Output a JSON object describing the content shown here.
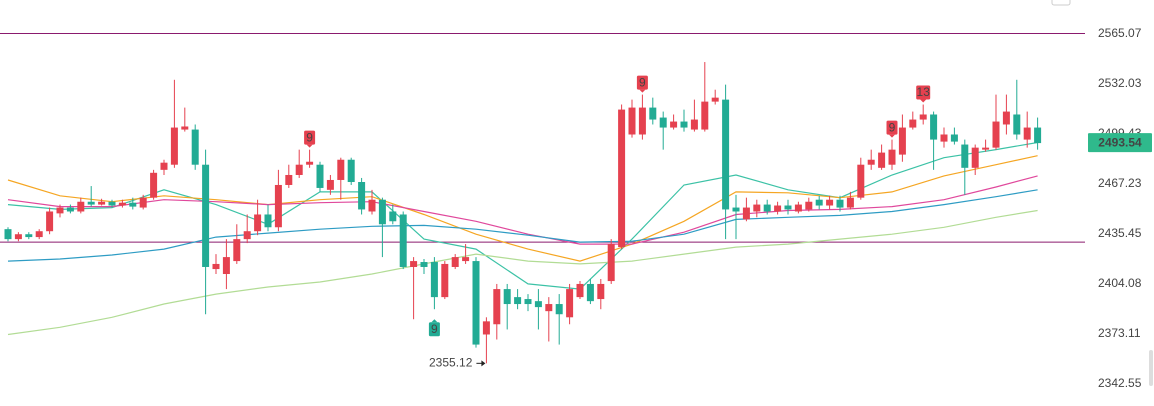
{
  "chart_data": {
    "type": "candlestick",
    "log_scale": true,
    "grid": false,
    "ylim": [
      2329.2,
      2587.8
    ],
    "yticks": [
      2565.07,
      2532.03,
      2499.43,
      2467.23,
      2435.45,
      2404.08,
      2373.11,
      2342.55
    ],
    "up_color": "#e5414f",
    "down_color": "#22ab94",
    "open": [
      2438.5,
      2432.2,
      2435.3,
      2433.5,
      2437.2,
      2448.5,
      2452.2,
      2449.7,
      2455.9,
      2454.1,
      2455.9,
      2453.5,
      2455.3,
      2452.2,
      2458.5,
      2476.3,
      2479.6,
      2502.3,
      2502.3,
      2479.6,
      2413.4,
      2410.3,
      2418.4,
      2432.2,
      2437.2,
      2447.8,
      2439.7,
      2466.6,
      2473.0,
      2479.6,
      2479.6,
      2463.5,
      2469.8,
      2482.8,
      2468.5,
      2449.7,
      2457.2,
      2449.7,
      2447.8,
      2414.7,
      2417.8,
      2417.8,
      2395.9,
      2414.7,
      2418.4,
      2418.4,
      2372.8,
      2379.1,
      2400.9,
      2395.9,
      2394.7,
      2393.4,
      2387.2,
      2391.6,
      2383.4,
      2395.9,
      2404.1,
      2394.7,
      2405.9,
      2427.2,
      2499.1,
      2499.1,
      2516.6,
      2510.1,
      2503.6,
      2507.5,
      2502.3,
      2502.3,
      2520.5,
      2521.8,
      2452.2,
      2444.7,
      2449.7,
      2454.1,
      2449.7,
      2453.5,
      2449.7,
      2451.0,
      2457.2,
      2453.5,
      2457.2,
      2452.2,
      2458.5,
      2479.6,
      2477.6,
      2479.6,
      2486.1,
      2503.6,
      2508.8,
      2512.1,
      2494.5,
      2499.1,
      2492.6,
      2477.6,
      2489.3,
      2490.6,
      2505.6,
      2512.1,
      2495.8,
      2503.6
    ],
    "high": [
      2439.7,
      2436.6,
      2436.6,
      2438.5,
      2452.2,
      2454.1,
      2454.1,
      2458.5,
      2465.9,
      2457.8,
      2457.2,
      2457.2,
      2458.5,
      2460.3,
      2476.3,
      2482.8,
      2534.8,
      2516.6,
      2505.6,
      2489.3,
      2422.8,
      2432.2,
      2441.6,
      2447.8,
      2457.2,
      2454.1,
      2476.3,
      2479.6,
      2489.3,
      2489.3,
      2481.5,
      2473.0,
      2484.1,
      2484.1,
      2471.1,
      2463.5,
      2458.5,
      2454.1,
      2449.7,
      2420.9,
      2419.7,
      2420.9,
      2418.4,
      2422.8,
      2429.1,
      2420.9,
      2383.4,
      2404.1,
      2404.1,
      2400.9,
      2397.8,
      2400.9,
      2395.9,
      2397.8,
      2404.1,
      2405.9,
      2407.2,
      2407.2,
      2432.2,
      2518.6,
      2521.8,
      2525.1,
      2523.1,
      2514.0,
      2512.1,
      2515.3,
      2521.8,
      2546.5,
      2528.3,
      2531.6,
      2460.3,
      2458.5,
      2457.2,
      2457.2,
      2455.9,
      2457.2,
      2455.9,
      2458.5,
      2459.7,
      2459.7,
      2459.7,
      2462.2,
      2484.1,
      2489.3,
      2492.6,
      2495.8,
      2512.1,
      2514.0,
      2518.6,
      2514.0,
      2503.6,
      2503.6,
      2495.8,
      2492.6,
      2495.8,
      2525.1,
      2525.1,
      2534.8,
      2514.0,
      2510.1
    ],
    "low": [
      2430.9,
      2430.9,
      2432.2,
      2432.2,
      2435.3,
      2446.0,
      2448.5,
      2448.5,
      2452.8,
      2453.5,
      2452.2,
      2452.2,
      2451.0,
      2451.0,
      2457.2,
      2473.0,
      2477.6,
      2501.0,
      2476.3,
      2385.3,
      2410.3,
      2400.9,
      2416.6,
      2429.7,
      2434.7,
      2437.2,
      2437.2,
      2464.7,
      2471.1,
      2477.6,
      2462.2,
      2460.3,
      2457.2,
      2466.6,
      2447.8,
      2447.8,
      2420.9,
      2441.6,
      2413.4,
      2382.2,
      2410.3,
      2388.4,
      2394.7,
      2413.4,
      2416.6,
      2364.7,
      2355.12,
      2369.7,
      2375.9,
      2388.4,
      2387.2,
      2375.9,
      2368.5,
      2366.6,
      2379.1,
      2394.7,
      2391.6,
      2388.4,
      2404.1,
      2425.9,
      2497.1,
      2495.8,
      2505.6,
      2489.3,
      2502.3,
      2501.0,
      2501.0,
      2501.0,
      2518.6,
      2432.2,
      2432.2,
      2443.5,
      2446.0,
      2447.8,
      2447.8,
      2447.8,
      2448.5,
      2449.7,
      2451.0,
      2451.0,
      2449.7,
      2451.0,
      2457.2,
      2476.3,
      2476.3,
      2476.3,
      2481.5,
      2502.3,
      2505.6,
      2476.3,
      2490.6,
      2492.6,
      2460.3,
      2473.0,
      2488.0,
      2489.3,
      2499.1,
      2495.8,
      2490.6,
      2489.3
    ],
    "close": [
      2432.2,
      2435.3,
      2433.5,
      2437.2,
      2449.7,
      2452.2,
      2449.7,
      2455.9,
      2454.1,
      2455.9,
      2453.5,
      2455.3,
      2452.8,
      2458.5,
      2474.4,
      2480.9,
      2503.6,
      2504.3,
      2479.6,
      2414.7,
      2416.6,
      2420.9,
      2432.2,
      2437.2,
      2447.8,
      2439.7,
      2466.6,
      2473.0,
      2479.6,
      2481.5,
      2464.7,
      2469.8,
      2482.8,
      2468.5,
      2451.0,
      2457.2,
      2441.6,
      2443.5,
      2414.7,
      2418.4,
      2414.7,
      2395.9,
      2416.6,
      2420.9,
      2420.9,
      2366.6,
      2380.9,
      2400.9,
      2391.6,
      2391.6,
      2391.6,
      2389.7,
      2391.6,
      2385.3,
      2400.9,
      2404.1,
      2393.4,
      2404.1,
      2429.1,
      2515.3,
      2516.6,
      2516.6,
      2508.8,
      2503.6,
      2507.5,
      2503.6,
      2508.8,
      2520.5,
      2523.1,
      2451.0,
      2449.7,
      2452.2,
      2454.1,
      2449.7,
      2453.5,
      2451.0,
      2454.1,
      2455.9,
      2453.5,
      2457.2,
      2452.2,
      2458.5,
      2479.6,
      2482.8,
      2487.4,
      2489.3,
      2503.6,
      2508.8,
      2512.1,
      2495.8,
      2499.1,
      2494.5,
      2477.6,
      2490.6,
      2490.6,
      2507.5,
      2514.0,
      2499.1,
      2503.6,
      2493.54
    ],
    "ma_x": [
      0,
      5,
      10,
      15,
      20,
      25,
      30,
      35,
      40,
      45,
      50,
      55,
      60,
      65,
      70,
      75,
      80,
      85,
      90,
      95,
      99
    ],
    "series": [
      {
        "color": "#3cc2a6",
        "values": [
          2454.1,
          2451.0,
          2452.2,
          2463.5,
          2454.1,
          2441.6,
          2462.2,
          2462.2,
          2432.2,
          2425.9,
          2404.1,
          2400.9,
          2432.2,
          2466.6,
          2473.0,
          2463.5,
          2458.5,
          2473.0,
          2484.1,
          2489.3,
          2493.9
        ]
      },
      {
        "color": "#f5a623",
        "values": [
          2469.8,
          2459.7,
          2455.9,
          2459.7,
          2457.2,
          2454.1,
          2457.2,
          2459.1,
          2447.8,
          2435.3,
          2425.9,
          2418.4,
          2429.1,
          2443.5,
          2462.2,
          2461.6,
          2458.5,
          2462.2,
          2472.4,
          2479.6,
          2485.4
        ]
      },
      {
        "color": "#e0489c",
        "values": [
          2457.2,
          2452.8,
          2452.8,
          2457.2,
          2455.9,
          2454.1,
          2455.3,
          2455.9,
          2449.7,
          2443.5,
          2435.3,
          2429.1,
          2429.1,
          2436.6,
          2447.8,
          2450.3,
          2451.0,
          2452.8,
          2457.2,
          2465.3,
          2472.4
        ]
      },
      {
        "color": "#2e9cc4",
        "values": [
          2418.4,
          2419.7,
          2422.2,
          2425.9,
          2433.5,
          2436.0,
          2438.5,
          2440.3,
          2440.9,
          2438.5,
          2434.7,
          2430.3,
          2430.9,
          2435.3,
          2444.7,
          2446.0,
          2447.2,
          2449.7,
          2454.1,
          2459.1,
          2463.5
        ]
      },
      {
        "color": "#b2dc95",
        "values": [
          2372.8,
          2377.2,
          2383.4,
          2391.6,
          2397.8,
          2402.2,
          2405.3,
          2410.3,
          2416.6,
          2422.8,
          2418.4,
          2416.6,
          2418.4,
          2422.8,
          2427.2,
          2429.1,
          2432.2,
          2435.3,
          2439.7,
          2446.0,
          2450.3
        ]
      }
    ],
    "hlines": [
      2565.4,
      2430.3
    ],
    "hline_color": "#8a1a6e",
    "signals": [
      {
        "candle": 29,
        "label": "9",
        "position": "above",
        "color": "#e5414f"
      },
      {
        "candle": 41,
        "label": "9",
        "position": "below",
        "color": "#22ab94"
      },
      {
        "candle": 61,
        "label": "9",
        "position": "above",
        "color": "#e5414f"
      },
      {
        "candle": 85,
        "label": "9",
        "position": "above",
        "color": "#e5414f"
      },
      {
        "candle": 88,
        "label": "13",
        "position": "above",
        "color": "#e5414f"
      }
    ],
    "last_price_color": "#2fb98c"
  }
}
